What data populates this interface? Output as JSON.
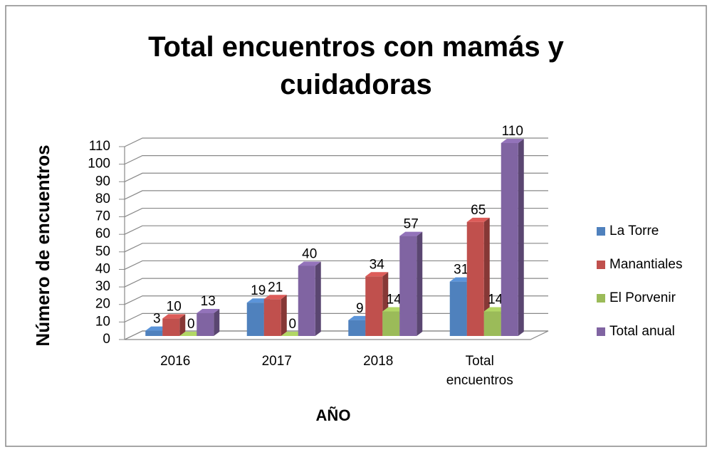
{
  "chart_data": {
    "type": "bar3d",
    "title": "Total encuentros con mamás y cuidadoras",
    "x_label": "AÑO",
    "y_label": "Número de encuentros",
    "categories": [
      "2016",
      "2017",
      "2018",
      "Total encuentros"
    ],
    "series": [
      {
        "name": "La Torre",
        "color": "#4f81bd",
        "values": [
          3,
          19,
          9,
          31
        ]
      },
      {
        "name": "Manantiales",
        "color": "#c0504d",
        "values": [
          10,
          21,
          34,
          65
        ]
      },
      {
        "name": "El Porvenir",
        "color": "#9bbb59",
        "values": [
          0,
          0,
          14,
          14
        ]
      },
      {
        "name": "Total anual",
        "color": "#8064a2",
        "values": [
          13,
          40,
          57,
          110
        ]
      }
    ],
    "ylim": [
      0,
      110
    ],
    "yticks": [
      0,
      10,
      20,
      30,
      40,
      50,
      60,
      70,
      80,
      90,
      100,
      110
    ],
    "grid": true,
    "legend": "right"
  }
}
